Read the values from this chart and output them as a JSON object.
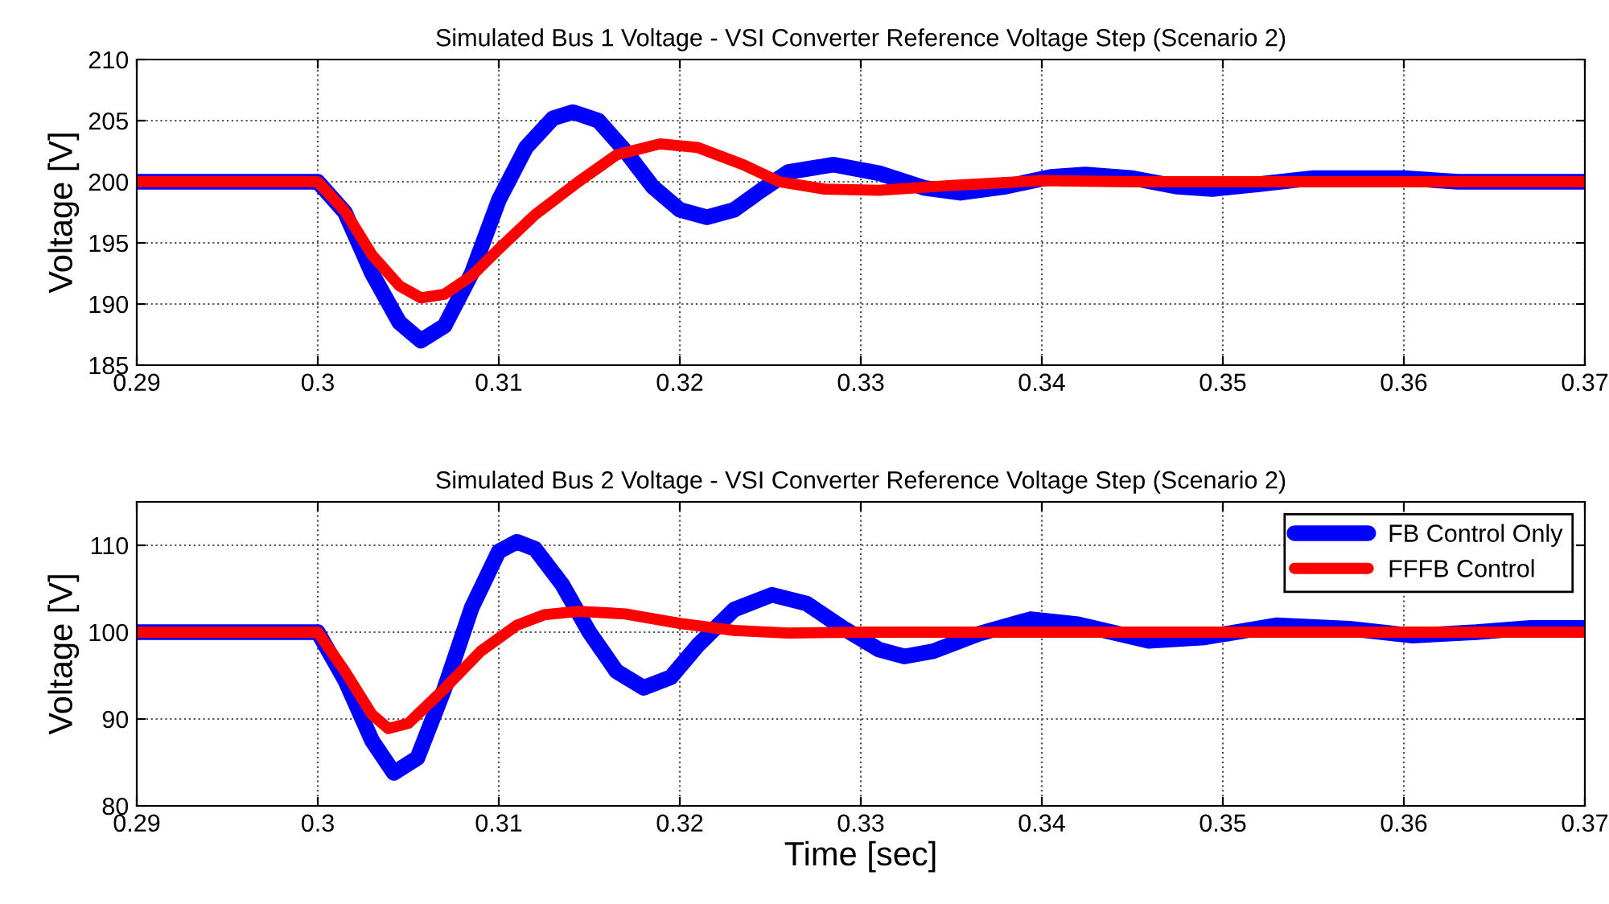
{
  "chart_data": [
    {
      "type": "line",
      "title": "Simulated Bus 1 Voltage - VSI Converter Reference Voltage Step (Scenario 2)",
      "ylabel": "Voltage [V]",
      "xlim": [
        0.29,
        0.37
      ],
      "xticks": [
        0.29,
        0.3,
        0.31,
        0.32,
        0.33,
        0.34,
        0.35,
        0.36,
        0.37
      ],
      "ylim": [
        185,
        210
      ],
      "yticks": [
        185,
        190,
        195,
        200,
        205,
        210
      ],
      "grid": true,
      "legend": false,
      "series": [
        {
          "color": "#0000ff",
          "x": [
            0.29,
            0.3,
            0.3015,
            0.303,
            0.3045,
            0.3057,
            0.307,
            0.3085,
            0.31,
            0.3115,
            0.313,
            0.3141,
            0.3155,
            0.317,
            0.3185,
            0.32,
            0.3215,
            0.323,
            0.3245,
            0.326,
            0.3285,
            0.331,
            0.3335,
            0.3355,
            0.338,
            0.3405,
            0.3424,
            0.345,
            0.3475,
            0.3494,
            0.352,
            0.355,
            0.36,
            0.363,
            0.37
          ],
          "values": [
            200,
            200,
            197.5,
            192.5,
            188.5,
            187.0,
            188.2,
            192.5,
            198.5,
            202.8,
            205.2,
            205.7,
            205.0,
            202.5,
            199.6,
            197.7,
            197.1,
            197.7,
            199.3,
            200.8,
            201.4,
            200.7,
            199.5,
            199.1,
            199.6,
            200.4,
            200.6,
            200.3,
            199.6,
            199.4,
            199.8,
            200.3,
            200.3,
            200.0,
            200
          ]
        },
        {
          "color": "#ff0000",
          "x": [
            0.29,
            0.3,
            0.3015,
            0.303,
            0.3045,
            0.3057,
            0.307,
            0.3085,
            0.31,
            0.312,
            0.3144,
            0.3165,
            0.3189,
            0.321,
            0.3235,
            0.3255,
            0.328,
            0.331,
            0.335,
            0.34,
            0.345,
            0.37
          ],
          "values": [
            200,
            200,
            197.6,
            194.0,
            191.5,
            190.5,
            190.8,
            192.3,
            194.5,
            197.3,
            200.0,
            202.2,
            203.1,
            202.8,
            201.4,
            200.0,
            199.4,
            199.3,
            199.7,
            200.1,
            200.0,
            200
          ]
        }
      ]
    },
    {
      "type": "line",
      "title": "Simulated Bus 2 Voltage - VSI Converter Reference Voltage Step (Scenario 2)",
      "xlabel": "Time [sec]",
      "ylabel": "Voltage [V]",
      "xlim": [
        0.29,
        0.37
      ],
      "xticks": [
        0.29,
        0.3,
        0.31,
        0.32,
        0.33,
        0.34,
        0.35,
        0.36,
        0.37
      ],
      "ylim": [
        80,
        115
      ],
      "yticks": [
        80,
        90,
        100,
        110
      ],
      "grid": true,
      "legend": "top right",
      "series": [
        {
          "name": "FB Control Only",
          "color": "#0000ff",
          "x": [
            0.29,
            0.3,
            0.3015,
            0.303,
            0.3042,
            0.3055,
            0.307,
            0.3085,
            0.31,
            0.311,
            0.312,
            0.3135,
            0.315,
            0.3165,
            0.318,
            0.3195,
            0.321,
            0.323,
            0.3251,
            0.327,
            0.329,
            0.331,
            0.3324,
            0.334,
            0.3365,
            0.3394,
            0.342,
            0.3459,
            0.349,
            0.353,
            0.357,
            0.3605,
            0.364,
            0.367,
            0.37
          ],
          "values": [
            100,
            100,
            94.5,
            87.5,
            83.8,
            85.5,
            93.5,
            102.8,
            109.3,
            110.4,
            109.6,
            105.5,
            100.0,
            95.5,
            93.6,
            94.8,
            98.5,
            102.6,
            104.3,
            103.3,
            100.5,
            98.0,
            97.2,
            97.8,
            99.8,
            101.5,
            100.9,
            99.0,
            99.4,
            100.8,
            100.4,
            99.6,
            100.0,
            100.5,
            100.5
          ]
        },
        {
          "name": "FFFB Control",
          "color": "#ff0000",
          "x": [
            0.29,
            0.3,
            0.3015,
            0.303,
            0.3039,
            0.305,
            0.307,
            0.309,
            0.311,
            0.3125,
            0.3144,
            0.317,
            0.32,
            0.323,
            0.326,
            0.33,
            0.37
          ],
          "values": [
            100,
            100,
            95.5,
            90.5,
            88.9,
            89.5,
            93.5,
            97.8,
            100.8,
            102.0,
            102.4,
            102.1,
            101.0,
            100.2,
            99.9,
            100.0,
            100
          ]
        }
      ]
    }
  ]
}
